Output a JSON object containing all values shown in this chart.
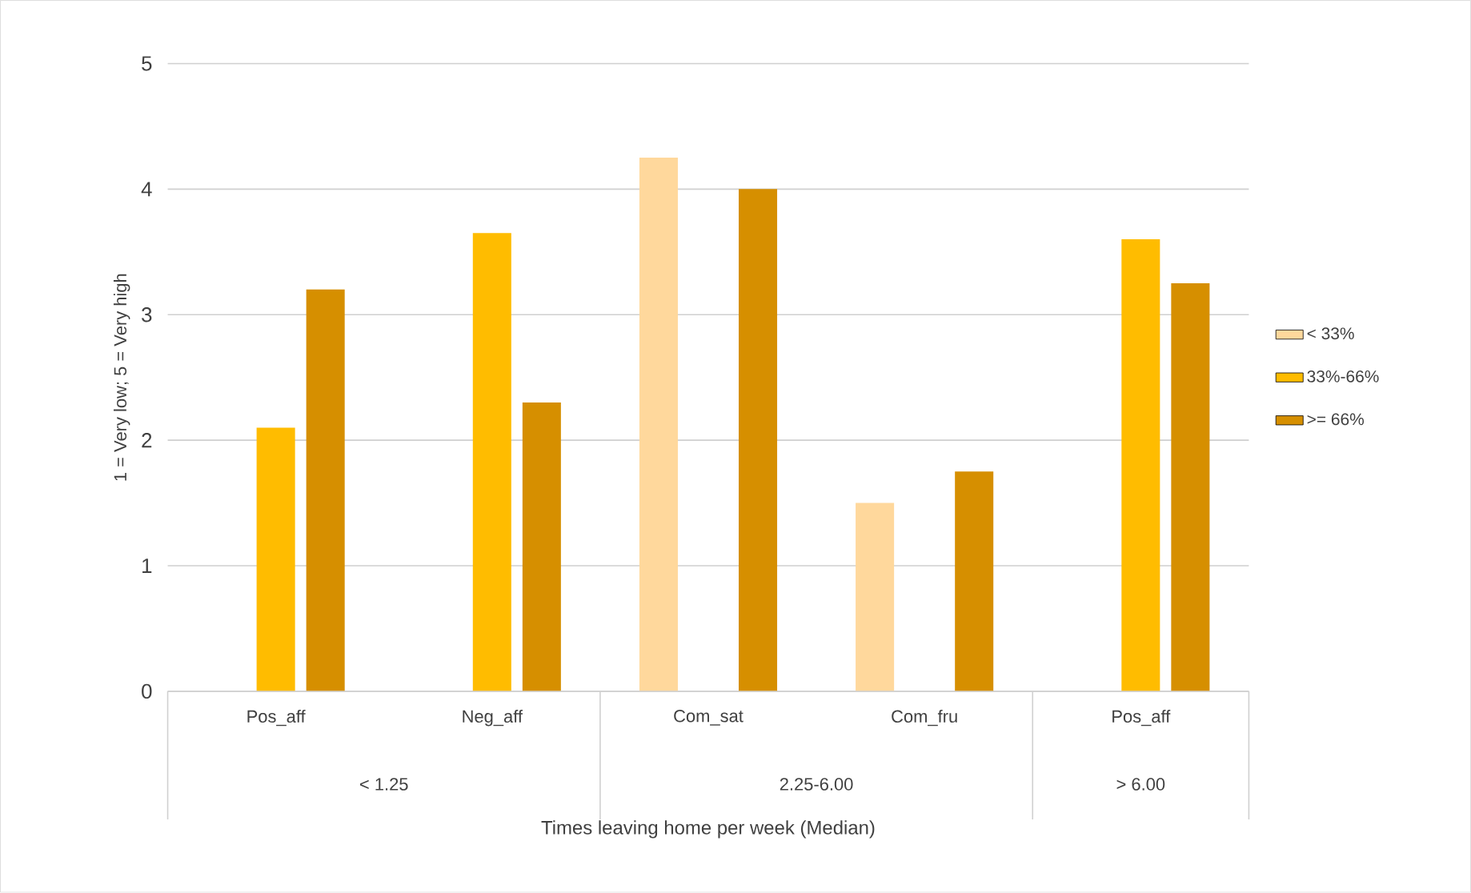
{
  "chart_data": {
    "type": "bar",
    "xlabel": "Times leaving home per week (Median)",
    "ylabel": "1 = Very low; 5 = Very high",
    "categories": [
      "Pos_aff",
      "Neg_aff",
      "Com_sat",
      "Com_fru",
      "Pos_aff"
    ],
    "series": [
      {
        "name": "< 33%",
        "color": "#ffd89c",
        "values": [
          null,
          null,
          4.25,
          1.5,
          null
        ]
      },
      {
        "name": "33%-66%",
        "color": "#ffbc00",
        "values": [
          2.1,
          3.65,
          null,
          null,
          3.6
        ]
      },
      {
        "name": ">= 66%",
        "color": "#d68f00",
        "values": [
          3.2,
          2.3,
          4.0,
          1.75,
          3.25
        ]
      }
    ],
    "annotations": [
      "< 1.25",
      "2.25-6.00",
      "> 6.00"
    ],
    "ylim": [
      0,
      5
    ],
    "yticks": [
      0,
      1,
      2,
      3,
      4,
      5
    ],
    "grid": "y",
    "legend": "right"
  }
}
